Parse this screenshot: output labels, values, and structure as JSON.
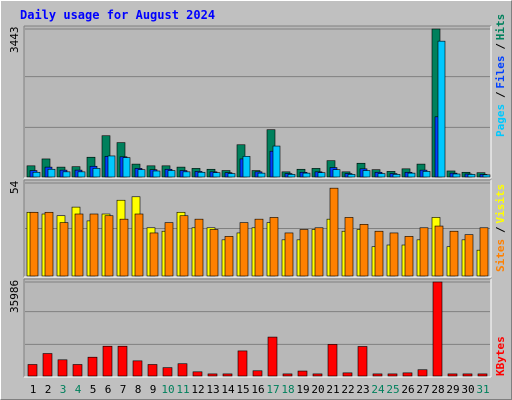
{
  "title": "Daily usage for August 2024",
  "chart_data": [
    {
      "type": "bar",
      "panel": "hits",
      "ymax_label": "3443",
      "ylim": [
        0,
        3443
      ],
      "categories": [
        "1",
        "2",
        "3",
        "4",
        "5",
        "6",
        "7",
        "8",
        "9",
        "10",
        "11",
        "12",
        "13",
        "14",
        "15",
        "16",
        "17",
        "18",
        "19",
        "20",
        "21",
        "22",
        "23",
        "24",
        "25",
        "26",
        "27",
        "28",
        "29",
        "30",
        "31"
      ],
      "series": [
        {
          "name": "Hits",
          "color": "#00805c",
          "values": [
            260,
            420,
            230,
            240,
            460,
            960,
            800,
            300,
            260,
            260,
            230,
            200,
            180,
            150,
            750,
            150,
            1100,
            120,
            180,
            200,
            380,
            120,
            320,
            170,
            130,
            190,
            300,
            3443,
            140,
            110,
            100
          ]
        },
        {
          "name": "Files",
          "color": "#0040ff",
          "values": [
            150,
            230,
            160,
            160,
            250,
            480,
            470,
            200,
            170,
            180,
            150,
            130,
            120,
            100,
            420,
            120,
            600,
            80,
            110,
            120,
            220,
            80,
            190,
            110,
            80,
            110,
            160,
            1400,
            90,
            70,
            60
          ]
        },
        {
          "name": "Pages",
          "color": "#00c8ff",
          "values": [
            110,
            180,
            120,
            120,
            200,
            490,
            450,
            170,
            140,
            150,
            120,
            110,
            100,
            80,
            480,
            90,
            720,
            60,
            90,
            100,
            170,
            60,
            150,
            80,
            60,
            90,
            130,
            3160,
            70,
            60,
            50
          ]
        }
      ],
      "legend": [
        "Pages",
        "Files",
        "Hits"
      ]
    },
    {
      "type": "bar",
      "panel": "visits",
      "ymax_label": "54",
      "ylim": [
        0,
        54
      ],
      "categories": [
        "1",
        "2",
        "3",
        "4",
        "5",
        "6",
        "7",
        "8",
        "9",
        "10",
        "11",
        "12",
        "13",
        "14",
        "15",
        "16",
        "17",
        "18",
        "19",
        "20",
        "21",
        "22",
        "23",
        "24",
        "25",
        "26",
        "27",
        "28",
        "29",
        "30",
        "31"
      ],
      "series": [
        {
          "name": "Visits",
          "color": "#ffff00",
          "values": [
            37,
            36,
            35,
            40,
            32,
            36,
            44,
            46,
            28,
            26,
            37,
            28,
            28,
            21,
            25,
            28,
            31,
            21,
            21,
            27,
            33,
            26,
            27,
            17,
            18,
            18,
            21,
            34,
            17,
            21,
            15
          ]
        },
        {
          "name": "Sites",
          "color": "#ff8000",
          "values": [
            37,
            37,
            31,
            36,
            36,
            35,
            33,
            36,
            25,
            31,
            35,
            33,
            27,
            23,
            31,
            33,
            34,
            25,
            27,
            28,
            51,
            34,
            30,
            26,
            25,
            23,
            28,
            29,
            26,
            24,
            28
          ]
        }
      ],
      "legend": [
        "Sites",
        "Visits"
      ]
    },
    {
      "type": "bar",
      "panel": "kbytes",
      "ymax_label": "35986",
      "ylim": [
        0,
        35986
      ],
      "categories": [
        "1",
        "2",
        "3",
        "4",
        "5",
        "6",
        "7",
        "8",
        "9",
        "10",
        "11",
        "12",
        "13",
        "14",
        "15",
        "16",
        "17",
        "18",
        "19",
        "20",
        "21",
        "22",
        "23",
        "24",
        "25",
        "26",
        "27",
        "28",
        "29",
        "30",
        "31"
      ],
      "series": [
        {
          "name": "KBytes",
          "color": "#ff0000",
          "values": [
            4400,
            8600,
            6200,
            4400,
            7200,
            11400,
            11400,
            5800,
            4400,
            3200,
            4700,
            1600,
            800,
            800,
            9600,
            2000,
            14900,
            800,
            1900,
            800,
            12100,
            1200,
            11300,
            800,
            800,
            1200,
            2400,
            35986,
            800,
            800,
            800
          ]
        }
      ],
      "legend": [
        "KBytes"
      ]
    }
  ],
  "weekend_days": [
    "3",
    "4",
    "10",
    "11",
    "17",
    "18",
    "24",
    "25",
    "31"
  ],
  "colors": {
    "background": "#c0c0c0",
    "plot_bg": "#b8b8b8",
    "title": "#0000ff",
    "weekday_label": "#000000",
    "weekend_label": "#00805c",
    "gridline": "#808080"
  }
}
